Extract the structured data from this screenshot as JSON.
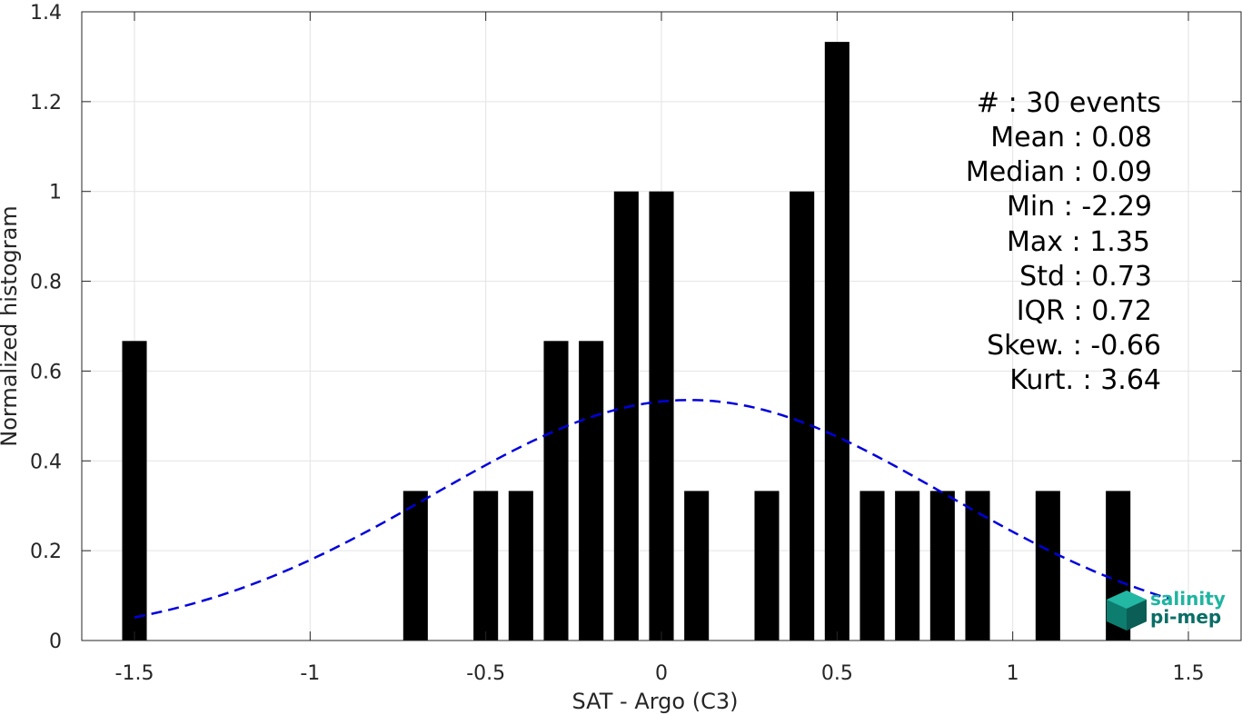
{
  "chart_data": {
    "type": "bar",
    "title": "",
    "xlabel": "SAT - Argo (C3)",
    "ylabel": "Normalized histogram",
    "xlim": [
      -1.65,
      1.65
    ],
    "ylim": [
      0,
      1.4
    ],
    "xticks": [
      -1.5,
      -1,
      -0.5,
      0,
      0.5,
      1,
      1.5
    ],
    "xtick_labels": [
      "-1.5",
      "-1",
      "-0.5",
      "0",
      "0.5",
      "1",
      "1.5"
    ],
    "yticks": [
      0,
      0.2,
      0.4,
      0.6,
      0.8,
      1,
      1.2,
      1.4
    ],
    "ytick_labels": [
      "0",
      "0.2",
      "0.4",
      "0.6",
      "0.8",
      "1",
      "1.2",
      "1.4"
    ],
    "grid": true,
    "bar_color": "#000000",
    "bins": [
      {
        "x": -1.5,
        "value": 0.667
      },
      {
        "x": -0.7,
        "value": 0.333
      },
      {
        "x": -0.5,
        "value": 0.333
      },
      {
        "x": -0.4,
        "value": 0.333
      },
      {
        "x": -0.3,
        "value": 0.667
      },
      {
        "x": -0.2,
        "value": 0.667
      },
      {
        "x": -0.1,
        "value": 1.0
      },
      {
        "x": 0.0,
        "value": 1.0
      },
      {
        "x": 0.1,
        "value": 0.333
      },
      {
        "x": 0.3,
        "value": 0.333
      },
      {
        "x": 0.4,
        "value": 1.0
      },
      {
        "x": 0.5,
        "value": 1.333
      },
      {
        "x": 0.6,
        "value": 0.333
      },
      {
        "x": 0.7,
        "value": 0.333
      },
      {
        "x": 0.8,
        "value": 0.333
      },
      {
        "x": 0.9,
        "value": 0.333
      },
      {
        "x": 1.1,
        "value": 0.333
      },
      {
        "x": 1.3,
        "value": 0.333
      }
    ],
    "bin_width": 0.1,
    "fit_curve": {
      "type": "normal-pdf",
      "mean": 0.08,
      "std": 0.73,
      "scale": 0.98,
      "x_range": [
        -1.5,
        1.45
      ],
      "color": "#0000dd",
      "style": "dashed"
    },
    "stats": [
      {
        "label": "#  ",
        "value": "30 events"
      },
      {
        "label": "Mean",
        "value": "0.08"
      },
      {
        "label": "Median",
        "value": "0.09"
      },
      {
        "label": "Min",
        "value": "-2.29"
      },
      {
        "label": "Max",
        "value": "1.35"
      },
      {
        "label": "Std",
        "value": "0.73"
      },
      {
        "label": "IQR",
        "value": "0.72"
      },
      {
        "label": "Skew.",
        "value": "-0.66"
      },
      {
        "label": "Kurt.",
        "value": "3.64"
      }
    ]
  },
  "stats_lines": {
    "count": "#  : 30 events",
    "mean": "Mean : 0.08",
    "median": "Median : 0.09",
    "min": "Min : -2.29",
    "max": "Max : 1.35",
    "std": "Std : 0.73",
    "iqr": "IQR : 0.72",
    "skew": "Skew. : -0.66",
    "kurt": "Kurt. : 3.64"
  },
  "logo": {
    "line1": "salinity",
    "line2": "pi-mep",
    "color1": "#1fb5a0",
    "color2": "#0a6e66"
  }
}
